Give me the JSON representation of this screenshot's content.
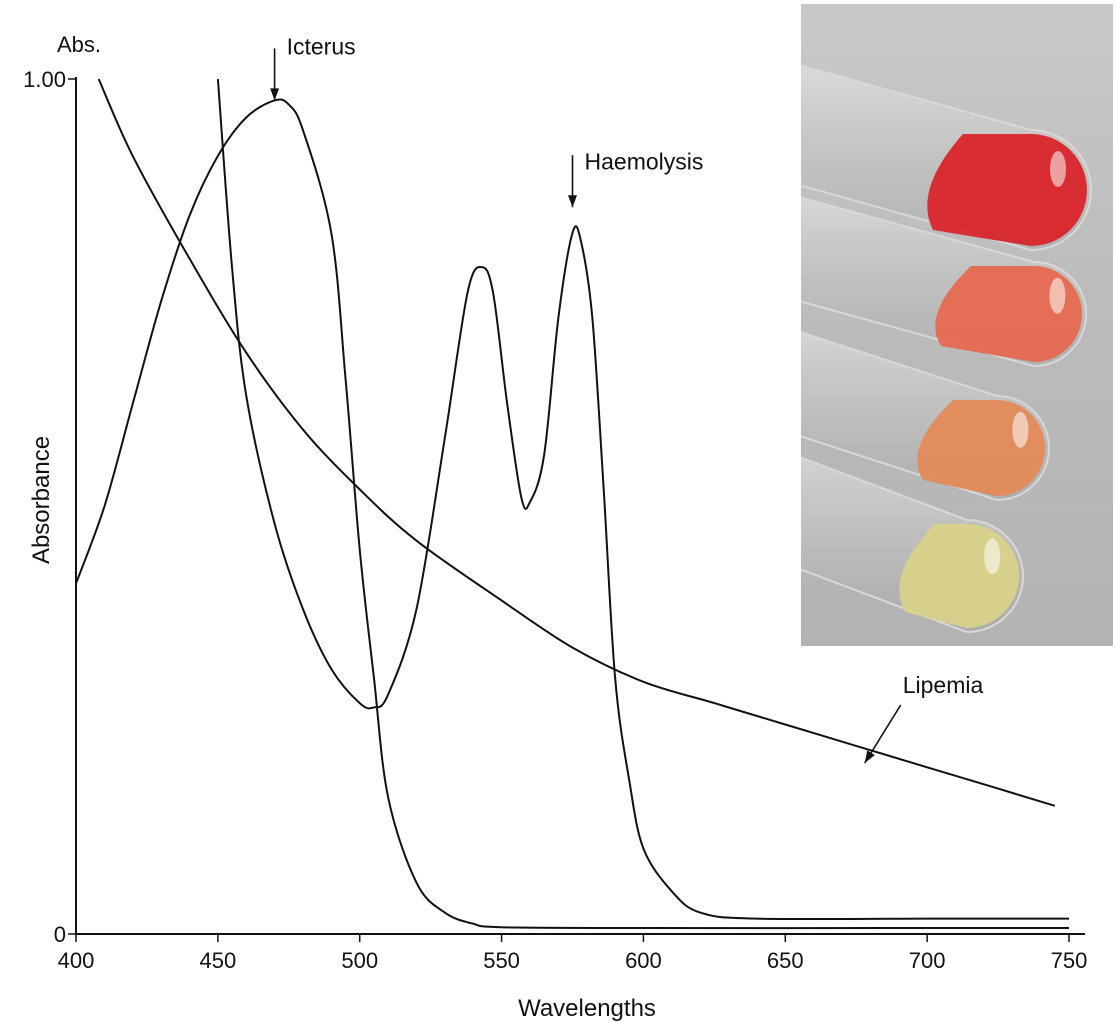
{
  "chart_data": {
    "type": "line",
    "ylabel": "Absorbance",
    "y_axis_title_top": "Abs.",
    "xlabel": "Wavelengths",
    "xlim": [
      400,
      750
    ],
    "ylim": [
      0,
      1.0
    ],
    "x_ticks": [
      400,
      450,
      500,
      550,
      600,
      650,
      700,
      750
    ],
    "y_ticks": [
      {
        "value": 0,
        "label": "0"
      },
      {
        "value": 1.0,
        "label": "1.00"
      }
    ],
    "grid": false,
    "series": [
      {
        "name": "Icterus",
        "points": [
          [
            400,
            0.41
          ],
          [
            410,
            0.5
          ],
          [
            420,
            0.62
          ],
          [
            430,
            0.74
          ],
          [
            440,
            0.84
          ],
          [
            450,
            0.91
          ],
          [
            460,
            0.955
          ],
          [
            470,
            0.975
          ],
          [
            475,
            0.97
          ],
          [
            480,
            0.94
          ],
          [
            490,
            0.82
          ],
          [
            495,
            0.65
          ],
          [
            500,
            0.45
          ],
          [
            505,
            0.3
          ],
          [
            510,
            0.16
          ],
          [
            520,
            0.06
          ],
          [
            530,
            0.025
          ],
          [
            540,
            0.012
          ],
          [
            550,
            0.008
          ],
          [
            600,
            0.007
          ],
          [
            700,
            0.007
          ],
          [
            750,
            0.007
          ]
        ]
      },
      {
        "name": "Haemolysis",
        "points": [
          [
            450,
            1.0
          ],
          [
            455,
            0.78
          ],
          [
            460,
            0.63
          ],
          [
            470,
            0.48
          ],
          [
            480,
            0.38
          ],
          [
            490,
            0.31
          ],
          [
            500,
            0.27
          ],
          [
            505,
            0.265
          ],
          [
            510,
            0.28
          ],
          [
            520,
            0.38
          ],
          [
            530,
            0.58
          ],
          [
            538,
            0.75
          ],
          [
            543,
            0.78
          ],
          [
            547,
            0.75
          ],
          [
            552,
            0.62
          ],
          [
            557,
            0.51
          ],
          [
            560,
            0.505
          ],
          [
            565,
            0.56
          ],
          [
            570,
            0.72
          ],
          [
            575,
            0.82
          ],
          [
            578,
            0.81
          ],
          [
            582,
            0.72
          ],
          [
            586,
            0.52
          ],
          [
            590,
            0.3
          ],
          [
            595,
            0.18
          ],
          [
            600,
            0.1
          ],
          [
            610,
            0.05
          ],
          [
            620,
            0.025
          ],
          [
            640,
            0.018
          ],
          [
            700,
            0.018
          ],
          [
            750,
            0.018
          ]
        ]
      },
      {
        "name": "Lipemia",
        "points": [
          [
            408,
            1.0
          ],
          [
            420,
            0.91
          ],
          [
            440,
            0.79
          ],
          [
            460,
            0.68
          ],
          [
            480,
            0.59
          ],
          [
            500,
            0.52
          ],
          [
            520,
            0.46
          ],
          [
            550,
            0.39
          ],
          [
            575,
            0.335
          ],
          [
            600,
            0.295
          ],
          [
            625,
            0.27
          ],
          [
            650,
            0.245
          ],
          [
            675,
            0.22
          ],
          [
            700,
            0.195
          ],
          [
            725,
            0.17
          ],
          [
            745,
            0.15
          ]
        ]
      }
    ],
    "annotations": [
      {
        "text": "Icterus",
        "arrow_to": [
          470,
          0.975
        ]
      },
      {
        "text": "Haemolysis",
        "arrow_to": [
          575,
          0.85
        ]
      },
      {
        "text": "Lipemia",
        "arrow_to": [
          678,
          0.2
        ]
      }
    ]
  },
  "photo": {
    "subject": "four blood-sample tubes",
    "tube_colors": [
      "#d9252a",
      "#e66a50",
      "#e48a58",
      "#d9d18a"
    ]
  }
}
